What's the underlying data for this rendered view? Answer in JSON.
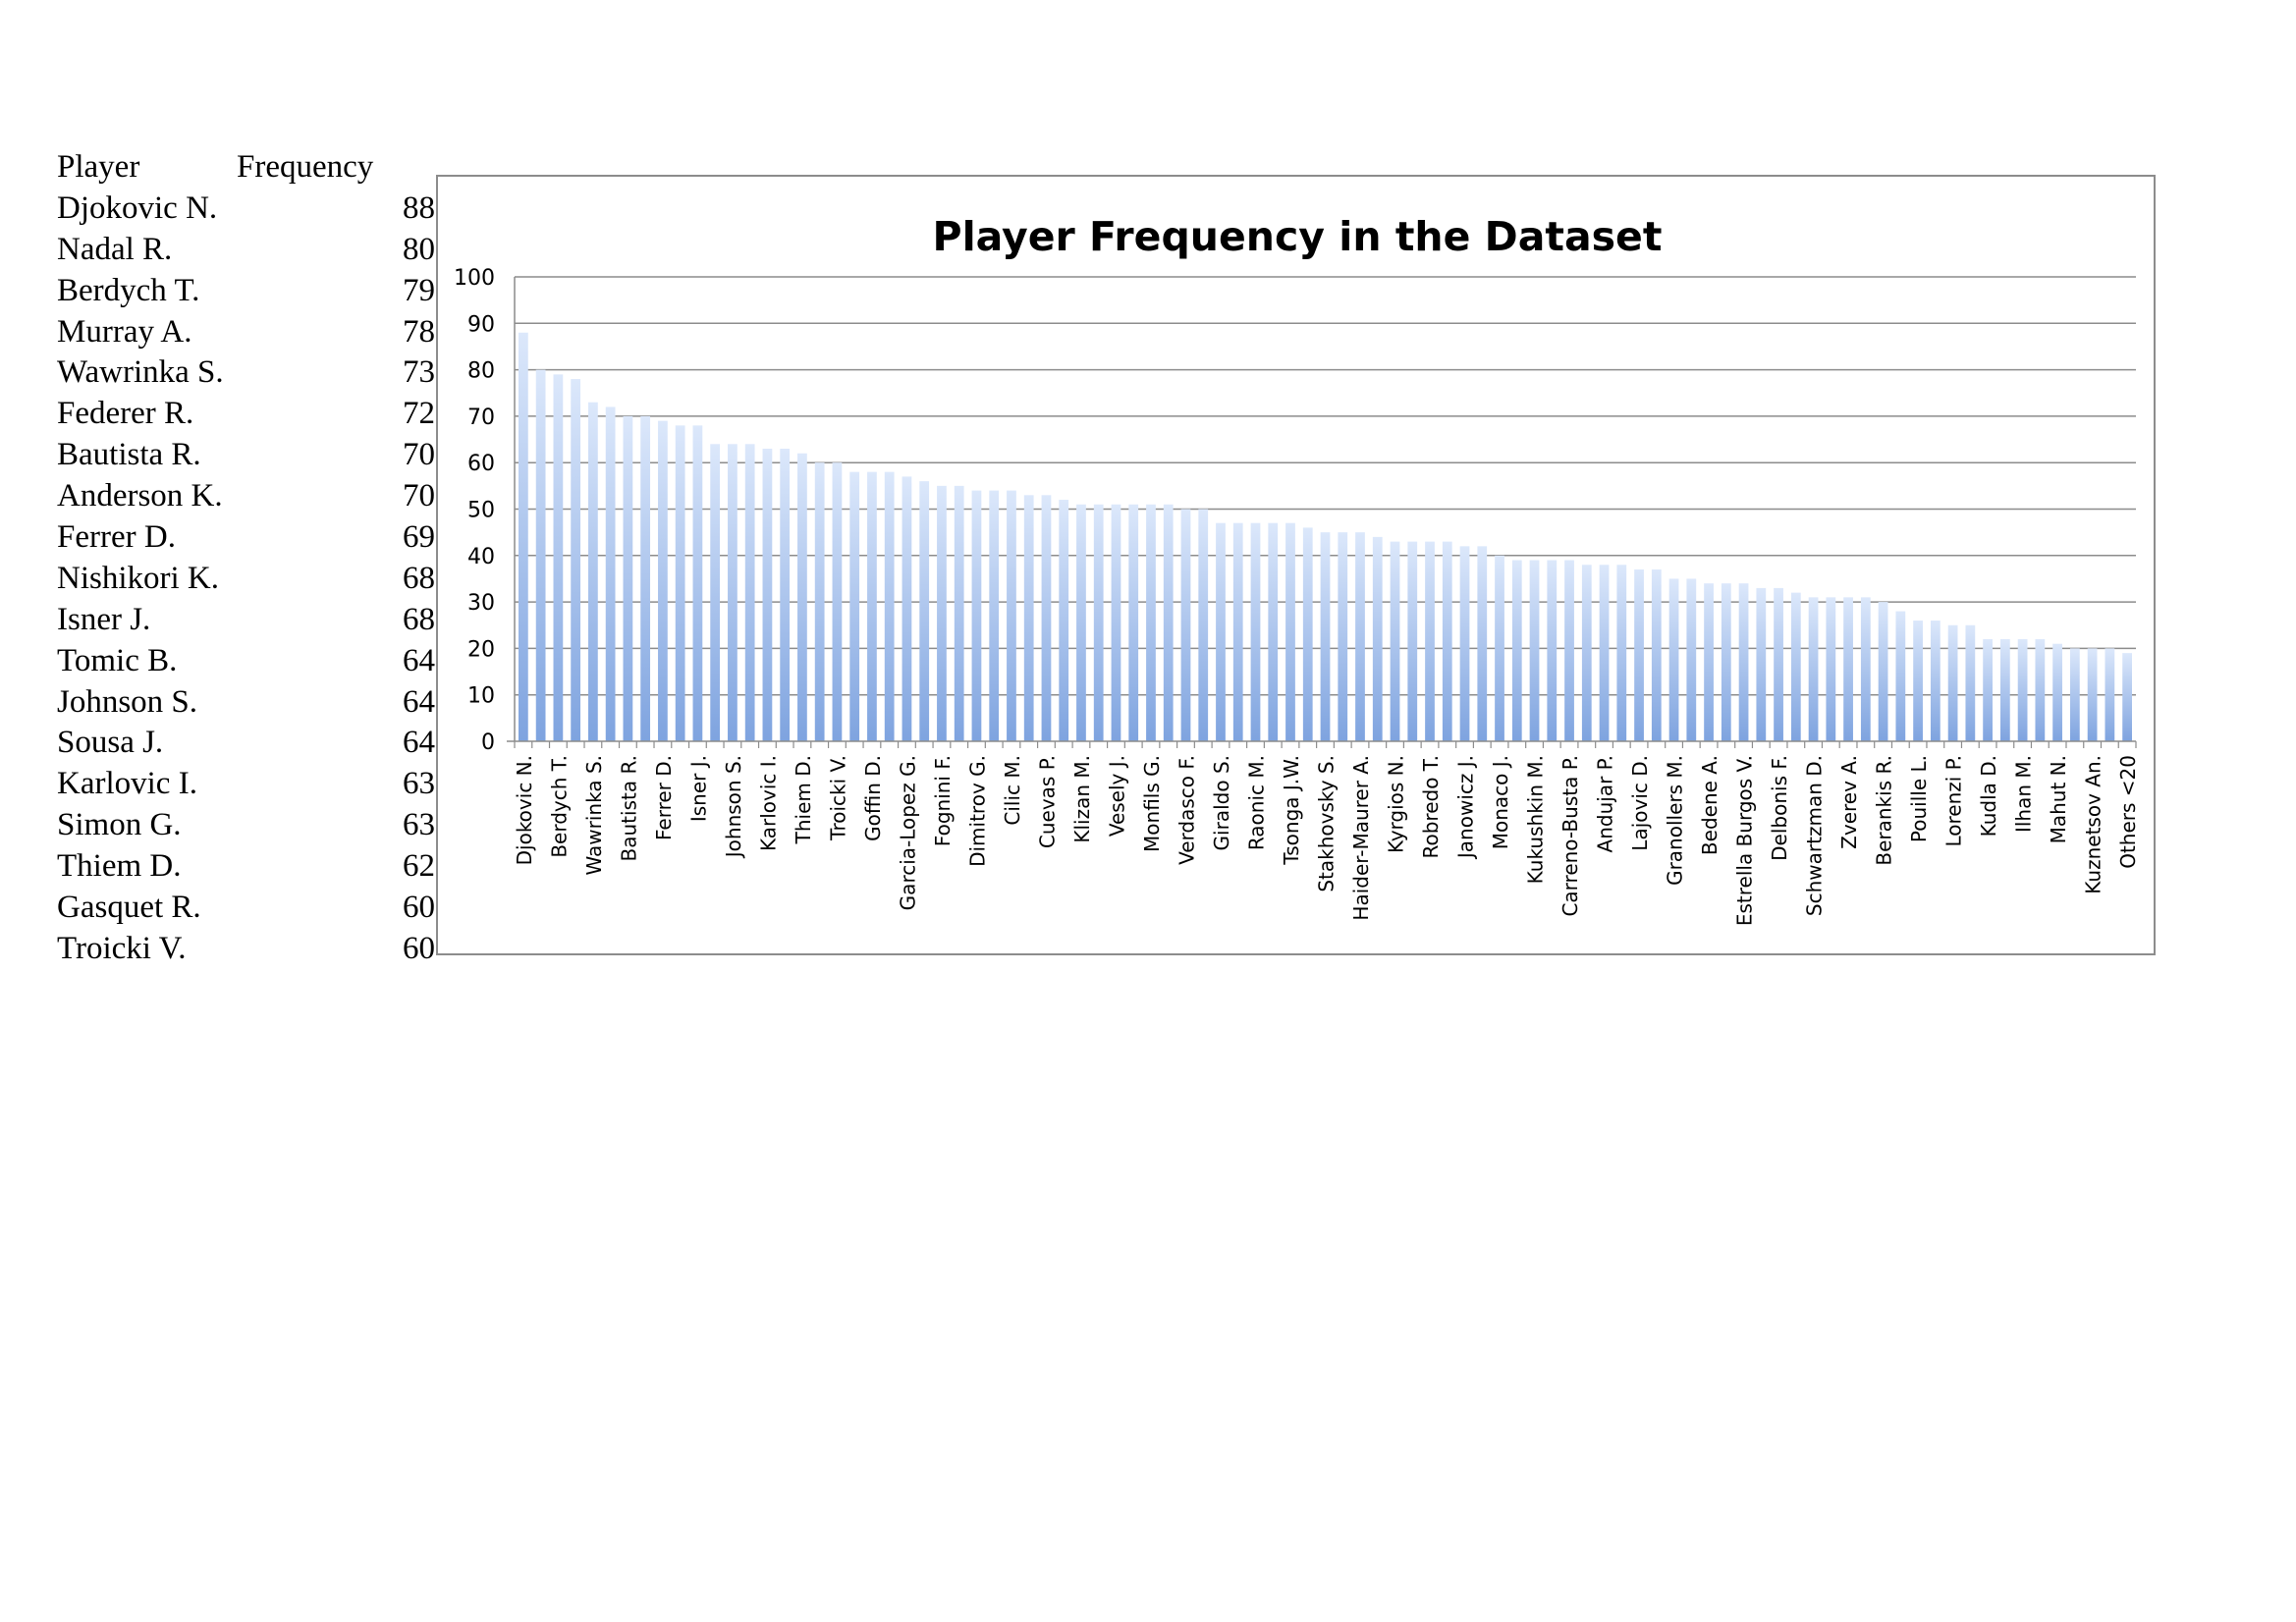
{
  "table": {
    "header": {
      "player": "Player",
      "frequency": "Frequency"
    },
    "rows": [
      {
        "player": "Djokovic N.",
        "frequency": "88"
      },
      {
        "player": "Nadal R.",
        "frequency": "80"
      },
      {
        "player": "Berdych T.",
        "frequency": "79"
      },
      {
        "player": "Murray A.",
        "frequency": "78"
      },
      {
        "player": "Wawrinka S.",
        "frequency": "73"
      },
      {
        "player": "Federer R.",
        "frequency": "72"
      },
      {
        "player": "Bautista R.",
        "frequency": "70"
      },
      {
        "player": "Anderson K.",
        "frequency": "70"
      },
      {
        "player": "Ferrer D.",
        "frequency": "69"
      },
      {
        "player": "Nishikori K.",
        "frequency": "68"
      },
      {
        "player": "Isner J.",
        "frequency": "68"
      },
      {
        "player": "Tomic B.",
        "frequency": "64"
      },
      {
        "player": "Johnson S.",
        "frequency": "64"
      },
      {
        "player": "Sousa J.",
        "frequency": "64"
      },
      {
        "player": "Karlovic I.",
        "frequency": "63"
      },
      {
        "player": "Simon G.",
        "frequency": "63"
      },
      {
        "player": "Thiem D.",
        "frequency": "62"
      },
      {
        "player": "Gasquet R.",
        "frequency": "60"
      },
      {
        "player": "Troicki V.",
        "frequency": "60"
      }
    ]
  },
  "colors": {
    "bar_top": "#dce8fb",
    "bar_bottom": "#7ea3df",
    "grid": "#8c8c8c",
    "text": "#000000"
  },
  "chart_data": {
    "type": "bar",
    "title": "Player Frequency in the Dataset",
    "xlabel": "",
    "ylabel": "",
    "ylim": [
      0,
      100
    ],
    "yticks": [
      0,
      10,
      20,
      30,
      40,
      50,
      60,
      70,
      80,
      90,
      100
    ],
    "grid": true,
    "legend": "none",
    "categories": [
      "Djokovic N.",
      "",
      "Berdych T.",
      "",
      "Wawrinka S.",
      "",
      "Bautista R.",
      "",
      "Ferrer D.",
      "",
      "Isner J.",
      "",
      "Johnson S.",
      "",
      "Karlovic I.",
      "",
      "Thiem D.",
      "",
      "Troicki V.",
      "",
      "Goffin D.",
      "",
      "Garcia-Lopez G.",
      "",
      "Fognini F.",
      "",
      "Dimitrov G.",
      "",
      "Cilic M.",
      "",
      "Cuevas P.",
      "",
      "Klizan M.",
      "",
      "Vesely J.",
      "",
      "Monfils G.",
      "",
      "Verdasco F.",
      "",
      "Giraldo S.",
      "",
      "Raonic M.",
      "",
      "Tsonga J.W.",
      "",
      "Stakhovsky S.",
      "",
      "Haider-Maurer A.",
      "",
      "Kyrgios N.",
      "",
      "Robredo T.",
      "",
      "Janowicz J.",
      "",
      "Monaco J.",
      "",
      "Kukushkin M.",
      "",
      "Carreno-Busta P.",
      "",
      "Andujar P.",
      "",
      "Lajovic D.",
      "",
      "Granollers M.",
      "",
      "Bedene A.",
      "",
      "Estrella Burgos V.",
      "",
      "Delbonis F.",
      "",
      "Schwartzman D.",
      "",
      "Zverev A.",
      "",
      "Berankis R.",
      "",
      "Pouille L.",
      "",
      "Lorenzi P.",
      "",
      "Kudla D.",
      "",
      "Ilhan M.",
      "",
      "Mahut N.",
      "",
      "Kuznetsov An.",
      "",
      "Others <20"
    ],
    "values": [
      88,
      80,
      79,
      78,
      73,
      72,
      70,
      70,
      69,
      68,
      68,
      64,
      64,
      64,
      63,
      63,
      62,
      60,
      60,
      58,
      58,
      58,
      57,
      56,
      55,
      55,
      54,
      54,
      54,
      53,
      53,
      52,
      51,
      51,
      51,
      51,
      51,
      51,
      50,
      50,
      47,
      47,
      47,
      47,
      47,
      46,
      45,
      45,
      45,
      44,
      43,
      43,
      43,
      43,
      42,
      42,
      40,
      39,
      39,
      39,
      39,
      38,
      38,
      38,
      37,
      37,
      35,
      35,
      34,
      34,
      34,
      33,
      33,
      32,
      31,
      31,
      31,
      31,
      30,
      28,
      26,
      26,
      25,
      25,
      22,
      22,
      22,
      22,
      21,
      20,
      20,
      20,
      19
    ]
  }
}
